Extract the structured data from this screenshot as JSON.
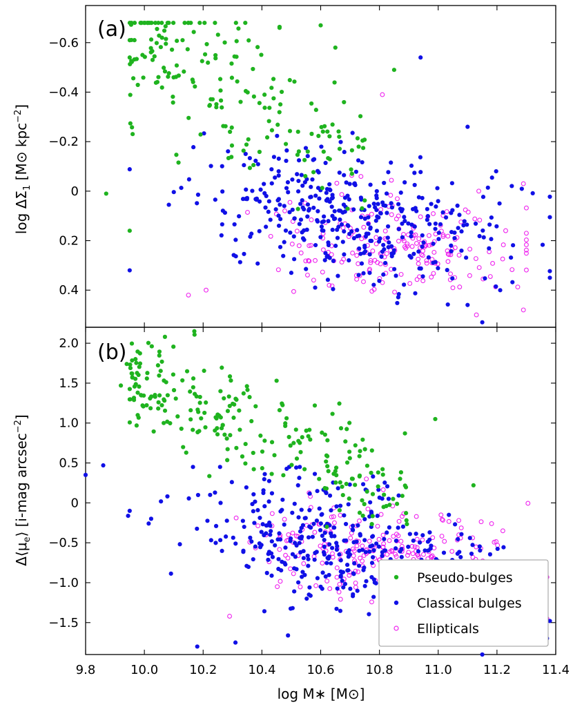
{
  "chart_data": {
    "type": "scatter",
    "xlabel": "log M∗ [M⊙]",
    "xlim": [
      9.8,
      11.4
    ],
    "xticks": [
      9.8,
      10.0,
      10.2,
      10.4,
      10.6,
      10.8,
      11.0,
      11.2,
      11.4
    ],
    "xtick_labels": [
      "9.8",
      "10.0",
      "10.2",
      "10.4",
      "10.6",
      "10.8",
      "11.0",
      "11.2",
      "11.4"
    ],
    "legend": {
      "location": "lower-right of panel (b)",
      "entries": [
        {
          "key": "pseudo",
          "label": "Pseudo-bulges",
          "color": "#1fb31f",
          "marker": "filled-circle"
        },
        {
          "key": "classical",
          "label": "Classical bulges",
          "color": "#1010e6",
          "marker": "filled-circle"
        },
        {
          "key": "elliptical",
          "label": "Ellipticals",
          "color": "#ee22ee",
          "marker": "open-circle"
        }
      ]
    },
    "panels": [
      {
        "id": "a",
        "label": "(a)",
        "ylabel_main": "log ΔΣ",
        "ylabel_sub": "1",
        "ylabel_units": " [M⊙ kpc",
        "ylabel_exp": "−2",
        "ylabel_close": "]",
        "ylim": [
          -0.75,
          0.55
        ],
        "yinverted": false,
        "yticks": [
          0.4,
          0.2,
          0,
          -0.2,
          -0.4,
          -0.6
        ],
        "ytick_labels": [
          "0.4",
          "0.2",
          "0",
          "−0.2",
          "−0.4",
          "−0.6"
        ],
        "generator": {
          "seed": 7,
          "n_pseudo": 190,
          "n_classical": 390,
          "n_elliptical": 200
        },
        "series": [
          {
            "key": "pseudo",
            "name": "Pseudo-bulges",
            "highlights": [
              [
                9.87,
                0.01
              ],
              [
                9.95,
                0.16
              ],
              [
                9.95,
                -0.54
              ],
              [
                10.06,
                -0.62
              ],
              [
                10.13,
                -0.61
              ],
              [
                10.46,
                -0.66
              ],
              [
                10.6,
                -0.67
              ],
              [
                10.65,
                -0.58
              ],
              [
                10.85,
                -0.49
              ]
            ]
          },
          {
            "key": "classical",
            "name": "Classical bulges",
            "highlights": [
              [
                9.95,
                0.32
              ],
              [
                10.5,
                0.33
              ],
              [
                11.15,
                0.53
              ],
              [
                11.1,
                0.46
              ],
              [
                11.38,
                0.35
              ],
              [
                10.94,
                -0.54
              ],
              [
                11.1,
                -0.26
              ]
            ]
          },
          {
            "key": "elliptical",
            "name": "Ellipticals",
            "highlights": [
              [
                10.15,
                0.42
              ],
              [
                10.21,
                0.4
              ],
              [
                11.13,
                0.5
              ],
              [
                11.29,
                0.48
              ],
              [
                11.3,
                0.17
              ],
              [
                11.29,
                -0.03
              ],
              [
                10.81,
                -0.39
              ]
            ]
          }
        ]
      },
      {
        "id": "b",
        "label": "(b)",
        "ylabel_main": "Δ⟨μ",
        "ylabel_sub": "e",
        "ylabel_units": "⟩ [i-mag arcsec",
        "ylabel_exp": "−2",
        "ylabel_close": "]",
        "ylim": [
          2.2,
          -1.9
        ],
        "yinverted": true,
        "yticks": [
          -1.5,
          -1.0,
          -0.5,
          0,
          0.5,
          1.0,
          1.5,
          2.0
        ],
        "ytick_labels": [
          "−1.5",
          "−1.0",
          "−0.5",
          "0",
          "0.5",
          "1.0",
          "1.5",
          "2.0"
        ],
        "generator": {
          "seed": 13,
          "n_pseudo": 240,
          "n_classical": 400,
          "n_elliptical": 250
        },
        "series": [
          {
            "key": "pseudo",
            "name": "Pseudo-bulges",
            "highlights": [
              [
                10.07,
                2.08
              ],
              [
                10.17,
                2.15
              ],
              [
                9.94,
                1.74
              ],
              [
                9.92,
                1.47
              ],
              [
                10.45,
                1.53
              ],
              [
                10.58,
                1.22
              ],
              [
                10.99,
                1.05
              ],
              [
                11.12,
                0.22
              ]
            ]
          },
          {
            "key": "classical",
            "name": "Classical bulges",
            "highlights": [
              [
                9.8,
                0.35
              ],
              [
                9.86,
                0.47
              ],
              [
                9.95,
                -0.1
              ],
              [
                10.18,
                -1.8
              ],
              [
                10.31,
                -1.75
              ],
              [
                11.15,
                -1.9
              ],
              [
                11.38,
                -1.48
              ],
              [
                11.35,
                -1.15
              ]
            ]
          },
          {
            "key": "elliptical",
            "name": "Ellipticals",
            "highlights": [
              [
                10.29,
                -1.42
              ],
              [
                11.14,
                -1.72
              ],
              [
                11.37,
                -1.45
              ],
              [
                11.32,
                -1.38
              ],
              [
                11.22,
                -0.35
              ],
              [
                11.07,
                -0.22
              ]
            ]
          }
        ]
      }
    ]
  }
}
